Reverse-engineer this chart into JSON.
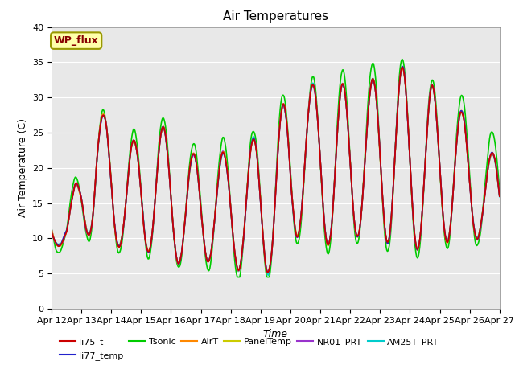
{
  "title": "Air Temperatures",
  "xlabel": "Time",
  "ylabel": "Air Temperature (C)",
  "ylim": [
    0,
    40
  ],
  "yticks": [
    0,
    5,
    10,
    15,
    20,
    25,
    30,
    35,
    40
  ],
  "date_labels": [
    "Apr 12",
    "Apr 13",
    "Apr 14",
    "Apr 15",
    "Apr 16",
    "Apr 17",
    "Apr 18",
    "Apr 19",
    "Apr 20",
    "Apr 21",
    "Apr 22",
    "Apr 23",
    "Apr 24",
    "Apr 25",
    "Apr 26",
    "Apr 27"
  ],
  "legend_entries": [
    "li75_t",
    "li77_temp",
    "Tsonic",
    "AirT",
    "PanelTemp",
    "NR01_PRT",
    "AM25T_PRT"
  ],
  "colors": {
    "li75_t": "#cc0000",
    "li77_temp": "#2222cc",
    "Tsonic": "#00cc00",
    "AirT": "#ff8800",
    "PanelTemp": "#cccc00",
    "NR01_PRT": "#9933cc",
    "AM25T_PRT": "#00cccc"
  },
  "wp_flux_facecolor": "#ffffaa",
  "wp_flux_edgecolor": "#999900",
  "wp_flux_textcolor": "#880000",
  "bg_color": "#e8e8e8",
  "grid_color": "white",
  "title_fontsize": 11,
  "axis_label_fontsize": 9,
  "tick_fontsize": 8,
  "legend_fontsize": 8
}
